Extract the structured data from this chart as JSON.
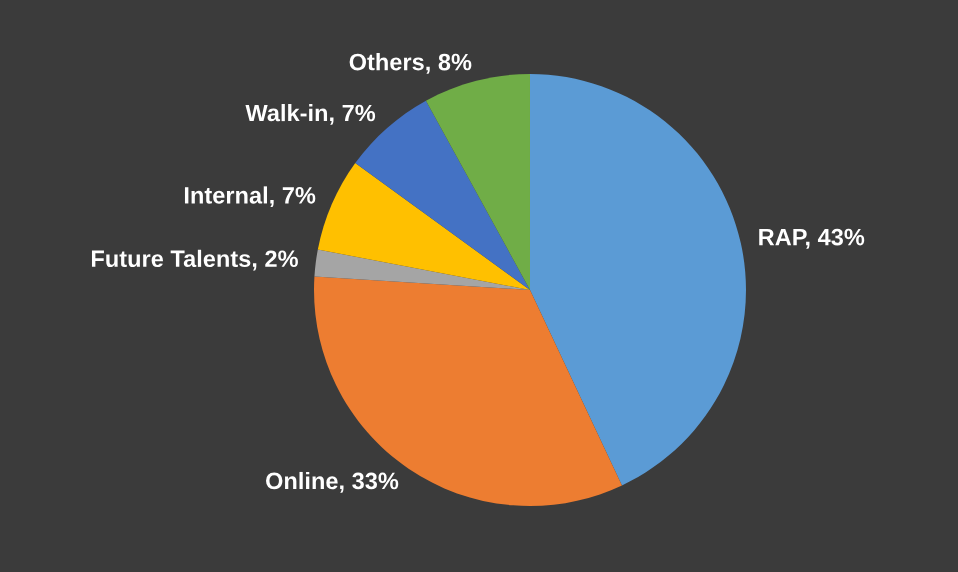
{
  "chart_data": {
    "type": "pie",
    "categories": [
      "RAP",
      "Online",
      "Future Talents",
      "Internal",
      "Walk-in",
      "Others"
    ],
    "values": [
      43,
      33,
      2,
      7,
      7,
      8
    ],
    "value_labels": [
      "43%",
      "33%",
      "2%",
      "7%",
      "7%",
      "8%"
    ],
    "colors": [
      "#5b9bd5",
      "#ed7d31",
      "#a5a5a5",
      "#ffc000",
      "#4472c4",
      "#70ad47"
    ]
  }
}
